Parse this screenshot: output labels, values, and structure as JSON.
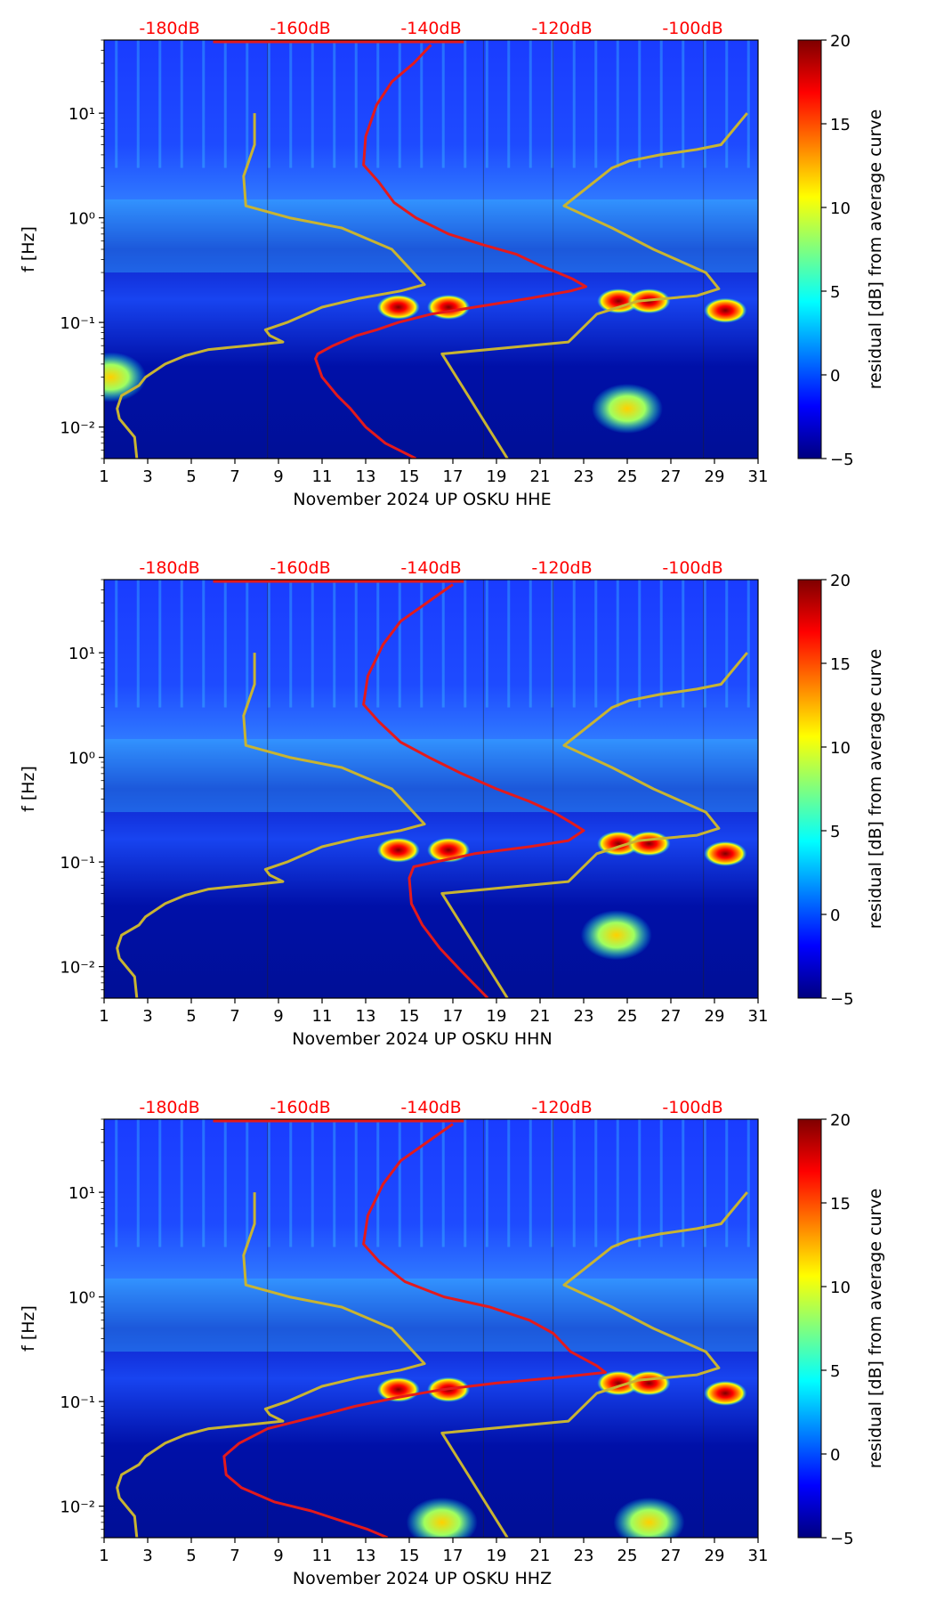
{
  "figure_title": "",
  "colorbar_gradient": [
    "#00007f",
    "#0000ff",
    "#007fff",
    "#00ffff",
    "#7fff7f",
    "#ffff00",
    "#ff7f00",
    "#ff0000",
    "#7f0000"
  ],
  "colors": {
    "psd_curve": "#e31a1c",
    "noise_model": "#c8b432",
    "db_label": "#ff0000"
  },
  "chart_data": [
    {
      "type": "heatmap",
      "xlabel": "November 2024 UP OSKU  HHE",
      "ylabel": "f [Hz]",
      "xlim": [
        1,
        31
      ],
      "ylim": [
        0.005,
        50
      ],
      "yscale": "log",
      "x_ticks": [
        "1",
        "3",
        "5",
        "7",
        "9",
        "11",
        "13",
        "15",
        "17",
        "19",
        "21",
        "23",
        "25",
        "27",
        "29",
        "31"
      ],
      "y_ticks": [
        {
          "label": "10⁻²",
          "value": 0.01
        },
        {
          "label": "10⁻¹",
          "value": 0.1
        },
        {
          "label": "10⁰",
          "value": 1
        },
        {
          "label": "10¹",
          "value": 10
        }
      ],
      "top_db_labels": [
        {
          "label": "-180dB",
          "x": 4
        },
        {
          "label": "-160dB",
          "x": 10
        },
        {
          "label": "-140dB",
          "x": 16
        },
        {
          "label": "-120dB",
          "x": 22
        },
        {
          "label": "-100dB",
          "x": 28
        }
      ],
      "colorbar": {
        "label": "residual [dB] from average curve",
        "min": -5,
        "max": 20,
        "ticks": [
          "−5",
          "0",
          "5",
          "10",
          "15",
          "20"
        ],
        "tick_values": [
          -5,
          0,
          5,
          10,
          15,
          20
        ]
      },
      "hot_spots": [
        {
          "day": 14.5,
          "freq": 0.14,
          "level": 20
        },
        {
          "day": 16.8,
          "freq": 0.14,
          "level": 20
        },
        {
          "day": 24.6,
          "freq": 0.16,
          "level": 18
        },
        {
          "day": 26.0,
          "freq": 0.16,
          "level": 18
        },
        {
          "day": 29.5,
          "freq": 0.13,
          "level": 18
        },
        {
          "day": 25.0,
          "freq": 0.015,
          "level": 12
        },
        {
          "day": 1.3,
          "freq": 0.03,
          "level": 14
        }
      ],
      "series": [
        {
          "name": "median PSD",
          "color": "#e31a1c",
          "x": [
            16,
            15.2,
            14.2,
            13.5,
            13,
            12.9,
            13.6,
            14.3,
            15.3,
            16.8,
            18.4,
            19.9,
            21,
            21.8,
            22.5,
            23.1,
            22.4,
            20.5,
            18,
            16,
            14.5,
            13.5,
            12.6,
            11.5,
            10.8,
            10.7,
            11,
            11.7,
            12.3,
            13,
            13.9,
            15.3
          ],
          "y": [
            45,
            30,
            20,
            12,
            6,
            3.2,
            2.2,
            1.4,
            1,
            0.7,
            0.55,
            0.45,
            0.35,
            0.3,
            0.26,
            0.22,
            0.2,
            0.17,
            0.14,
            0.12,
            0.1,
            0.085,
            0.075,
            0.06,
            0.05,
            0.045,
            0.03,
            0.02,
            0.015,
            0.01,
            0.007,
            0.005
          ]
        },
        {
          "name": "noise model",
          "color": "#c8b432",
          "x": [
            7.9,
            7.9,
            7.4,
            7.5,
            9.5,
            11.9,
            14.2,
            15.7,
            14.6,
            12.7,
            11,
            9.4,
            8.4,
            8.6,
            9.2,
            7.6,
            5.8,
            4.7,
            3.8,
            2.9,
            2.6,
            1.8,
            1.6,
            1.7,
            2.4,
            2.5
          ],
          "y": [
            10,
            5,
            2.5,
            1.3,
            1,
            0.8,
            0.5,
            0.23,
            0.2,
            0.17,
            0.14,
            0.1,
            0.085,
            0.075,
            0.065,
            0.06,
            0.055,
            0.048,
            0.04,
            0.03,
            0.025,
            0.02,
            0.015,
            0.012,
            0.008,
            0.005
          ]
        },
        {
          "name": "noise model",
          "color": "#c8b432",
          "x": [
            30.5,
            29.3,
            28.2,
            26.5,
            25.1,
            24.3,
            22.1,
            24.3,
            26.2,
            28.6,
            29.2,
            28.2,
            25.5,
            23.6,
            22.3,
            16.5,
            19.5
          ],
          "y": [
            10,
            5,
            4.5,
            4,
            3.5,
            3,
            1.3,
            0.8,
            0.5,
            0.3,
            0.21,
            0.18,
            0.16,
            0.12,
            0.065,
            0.05,
            0.005
          ]
        }
      ]
    },
    {
      "type": "heatmap",
      "xlabel": "November 2024 UP OSKU  HHN",
      "ylabel": "f [Hz]",
      "xlim": [
        1,
        31
      ],
      "ylim": [
        0.005,
        50
      ],
      "yscale": "log",
      "x_ticks": [
        "1",
        "3",
        "5",
        "7",
        "9",
        "11",
        "13",
        "15",
        "17",
        "19",
        "21",
        "23",
        "25",
        "27",
        "29",
        "31"
      ],
      "y_ticks": [
        {
          "label": "10⁻²",
          "value": 0.01
        },
        {
          "label": "10⁻¹",
          "value": 0.1
        },
        {
          "label": "10⁰",
          "value": 1
        },
        {
          "label": "10¹",
          "value": 10
        }
      ],
      "top_db_labels": [
        {
          "label": "-180dB",
          "x": 4
        },
        {
          "label": "-160dB",
          "x": 10
        },
        {
          "label": "-140dB",
          "x": 16
        },
        {
          "label": "-120dB",
          "x": 22
        },
        {
          "label": "-100dB",
          "x": 28
        }
      ],
      "colorbar": {
        "label": "residual [dB] from average curve",
        "min": -5,
        "max": 20,
        "ticks": [
          "−5",
          "0",
          "5",
          "10",
          "15",
          "20"
        ],
        "tick_values": [
          -5,
          0,
          5,
          10,
          15,
          20
        ]
      },
      "hot_spots": [
        {
          "day": 14.5,
          "freq": 0.13,
          "level": 20
        },
        {
          "day": 16.8,
          "freq": 0.13,
          "level": 20
        },
        {
          "day": 24.6,
          "freq": 0.15,
          "level": 18
        },
        {
          "day": 26.0,
          "freq": 0.15,
          "level": 18
        },
        {
          "day": 29.5,
          "freq": 0.12,
          "level": 18
        },
        {
          "day": 24.5,
          "freq": 0.02,
          "level": 9
        }
      ],
      "series": [
        {
          "name": "median PSD",
          "color": "#e31a1c",
          "x": [
            17,
            15.8,
            14.6,
            13.8,
            13.1,
            12.9,
            13.6,
            14.6,
            15.9,
            17.4,
            19,
            20.5,
            21.6,
            22.4,
            23,
            22.3,
            20.5,
            18,
            16.2,
            15.2,
            15,
            15.1,
            15.6,
            16.4,
            17.4,
            18.6
          ],
          "y": [
            45,
            30,
            20,
            12,
            6,
            3.2,
            2.2,
            1.4,
            1,
            0.7,
            0.5,
            0.38,
            0.3,
            0.24,
            0.2,
            0.16,
            0.14,
            0.12,
            0.1,
            0.09,
            0.07,
            0.04,
            0.025,
            0.015,
            0.009,
            0.005
          ]
        },
        {
          "name": "noise model",
          "color": "#c8b432",
          "x": [
            7.9,
            7.9,
            7.4,
            7.5,
            9.5,
            11.9,
            14.2,
            15.7,
            14.6,
            12.7,
            11,
            9.4,
            8.4,
            8.6,
            9.2,
            7.6,
            5.8,
            4.7,
            3.8,
            2.9,
            2.6,
            1.8,
            1.6,
            1.7,
            2.4,
            2.5
          ],
          "y": [
            10,
            5,
            2.5,
            1.3,
            1,
            0.8,
            0.5,
            0.23,
            0.2,
            0.17,
            0.14,
            0.1,
            0.085,
            0.075,
            0.065,
            0.06,
            0.055,
            0.048,
            0.04,
            0.03,
            0.025,
            0.02,
            0.015,
            0.012,
            0.008,
            0.005
          ]
        },
        {
          "name": "noise model",
          "color": "#c8b432",
          "x": [
            30.5,
            29.3,
            28.2,
            26.5,
            25.1,
            24.3,
            22.1,
            24.3,
            26.2,
            28.6,
            29.2,
            28.2,
            25.5,
            23.6,
            22.3,
            16.5,
            19.5
          ],
          "y": [
            10,
            5,
            4.5,
            4,
            3.5,
            3,
            1.3,
            0.8,
            0.5,
            0.3,
            0.21,
            0.18,
            0.16,
            0.12,
            0.065,
            0.05,
            0.005
          ]
        }
      ]
    },
    {
      "type": "heatmap",
      "xlabel": "November 2024 UP OSKU  HHZ",
      "ylabel": "f [Hz]",
      "xlim": [
        1,
        31
      ],
      "ylim": [
        0.005,
        50
      ],
      "yscale": "log",
      "x_ticks": [
        "1",
        "3",
        "5",
        "7",
        "9",
        "11",
        "13",
        "15",
        "17",
        "19",
        "21",
        "23",
        "25",
        "27",
        "29",
        "31"
      ],
      "y_ticks": [
        {
          "label": "10⁻²",
          "value": 0.01
        },
        {
          "label": "10⁻¹",
          "value": 0.1
        },
        {
          "label": "10⁰",
          "value": 1
        },
        {
          "label": "10¹",
          "value": 10
        }
      ],
      "top_db_labels": [
        {
          "label": "-180dB",
          "x": 4
        },
        {
          "label": "-160dB",
          "x": 10
        },
        {
          "label": "-140dB",
          "x": 16
        },
        {
          "label": "-120dB",
          "x": 22
        },
        {
          "label": "-100dB",
          "x": 28
        }
      ],
      "colorbar": {
        "label": "residual [dB] from average curve",
        "min": -5,
        "max": 20,
        "ticks": [
          "−5",
          "0",
          "5",
          "10",
          "15",
          "20"
        ],
        "tick_values": [
          -5,
          0,
          5,
          10,
          15,
          20
        ]
      },
      "hot_spots": [
        {
          "day": 14.5,
          "freq": 0.13,
          "level": 20
        },
        {
          "day": 16.8,
          "freq": 0.13,
          "level": 20
        },
        {
          "day": 24.6,
          "freq": 0.15,
          "level": 18
        },
        {
          "day": 26.0,
          "freq": 0.15,
          "level": 18
        },
        {
          "day": 29.5,
          "freq": 0.12,
          "level": 18
        },
        {
          "day": 16.5,
          "freq": 0.007,
          "level": 12
        },
        {
          "day": 26.0,
          "freq": 0.007,
          "level": 12
        }
      ],
      "series": [
        {
          "name": "median PSD",
          "color": "#e31a1c",
          "x": [
            17,
            15.8,
            14.6,
            13.8,
            13.1,
            12.9,
            13.6,
            14.8,
            16.6,
            18.7,
            20.5,
            21.6,
            22.4,
            23.6,
            24,
            21.8,
            19,
            16.5,
            14.5,
            12.5,
            10.5,
            8.5,
            7.2,
            6.5,
            6.6,
            7.3,
            8.8,
            10.5,
            12.1,
            13.1,
            14
          ],
          "y": [
            45,
            30,
            20,
            12,
            6,
            3.2,
            2.2,
            1.4,
            1,
            0.8,
            0.6,
            0.45,
            0.3,
            0.22,
            0.19,
            0.17,
            0.15,
            0.13,
            0.11,
            0.09,
            0.07,
            0.055,
            0.04,
            0.03,
            0.02,
            0.015,
            0.011,
            0.009,
            0.007,
            0.006,
            0.005
          ]
        },
        {
          "name": "noise model",
          "color": "#c8b432",
          "x": [
            7.9,
            7.9,
            7.4,
            7.5,
            9.5,
            11.9,
            14.2,
            15.7,
            14.6,
            12.7,
            11,
            9.4,
            8.4,
            8.6,
            9.2,
            7.6,
            5.8,
            4.7,
            3.8,
            2.9,
            2.6,
            1.8,
            1.6,
            1.7,
            2.4,
            2.5
          ],
          "y": [
            10,
            5,
            2.5,
            1.3,
            1,
            0.8,
            0.5,
            0.23,
            0.2,
            0.17,
            0.14,
            0.1,
            0.085,
            0.075,
            0.065,
            0.06,
            0.055,
            0.048,
            0.04,
            0.03,
            0.025,
            0.02,
            0.015,
            0.012,
            0.008,
            0.005
          ]
        },
        {
          "name": "noise model",
          "color": "#c8b432",
          "x": [
            30.5,
            29.3,
            28.2,
            26.5,
            25.1,
            24.3,
            22.1,
            24.3,
            26.2,
            28.6,
            29.2,
            28.2,
            25.5,
            23.6,
            22.3,
            16.5,
            19.5
          ],
          "y": [
            10,
            5,
            4.5,
            4,
            3.5,
            3,
            1.3,
            0.8,
            0.5,
            0.3,
            0.21,
            0.18,
            0.16,
            0.12,
            0.065,
            0.05,
            0.005
          ]
        }
      ]
    }
  ]
}
